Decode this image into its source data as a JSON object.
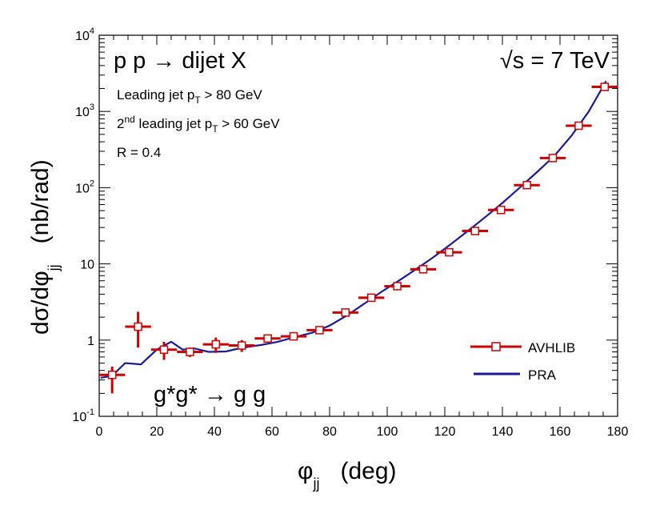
{
  "chart_data": {
    "type": "line",
    "title": "p p → dijet X",
    "energy_label": "√s = 7 TeV",
    "process_label": "g*g* → g g",
    "cut_lines": [
      {
        "text": "Leading jet p",
        "sub": "T",
        "rest": " > 80 GeV"
      },
      {
        "pre": "2",
        "sup": "nd",
        "text": " leading jet p",
        "sub": "T",
        "rest": " > 60 GeV"
      },
      {
        "text": "R = 0.4"
      }
    ],
    "xlabel": {
      "main": "φ",
      "sub": "jj",
      "unit": "(deg)"
    },
    "ylabel": {
      "main": "dσ/dφ",
      "sub": "jj",
      "unit": "(nb/rad)"
    },
    "x_range": [
      0,
      180
    ],
    "y_range": [
      0.1,
      10000
    ],
    "y_scale": "log",
    "x_ticks": [
      "0",
      "20",
      "40",
      "60",
      "80",
      "100",
      "120",
      "140",
      "160",
      "180"
    ],
    "x_tick_values": [
      0,
      20,
      40,
      60,
      80,
      100,
      120,
      140,
      160,
      180
    ],
    "y_tick_values": [
      0.1,
      1,
      10,
      100,
      1000,
      10000
    ],
    "y_tick_labels": [
      {
        "base": "10",
        "exp": "-1"
      },
      {
        "base": "1",
        "exp": ""
      },
      {
        "base": "10",
        "exp": ""
      },
      {
        "base": "10",
        "exp": "2"
      },
      {
        "base": "10",
        "exp": "3"
      },
      {
        "base": "10",
        "exp": "4"
      }
    ],
    "legend_position": "bottom-right",
    "series": [
      {
        "name": "AVHLIB",
        "style": "markers-with-errorbars",
        "color": "#cc0000",
        "x": [
          4.5,
          13.5,
          22.5,
          31.5,
          40.5,
          49.5,
          58.5,
          67.5,
          76.5,
          85.5,
          94.5,
          103.5,
          112.5,
          121.5,
          130.5,
          139.5,
          148.5,
          157.5,
          166.5,
          175.5
        ],
        "x_err": 4.5,
        "y": [
          0.35,
          1.5,
          0.75,
          0.7,
          0.88,
          0.85,
          1.05,
          1.12,
          1.35,
          2.3,
          3.6,
          5.1,
          8.5,
          14.2,
          27,
          51,
          108,
          245,
          650,
          2100
        ],
        "y_err_lo": [
          0.15,
          0.7,
          0.2,
          0.1,
          0.2,
          0.15,
          0.1,
          0.1,
          0.1,
          0.15,
          0.2,
          0.25,
          0.4,
          0.6,
          1.0,
          2.0,
          4.0,
          8.0,
          20,
          60
        ],
        "y_err_hi": [
          0.1,
          0.85,
          0.2,
          0.1,
          0.2,
          0.15,
          0.1,
          0.1,
          0.1,
          0.15,
          0.2,
          0.25,
          0.4,
          0.6,
          1.0,
          2.0,
          4.0,
          8.0,
          20,
          60
        ]
      },
      {
        "name": "PRA",
        "style": "line",
        "color": "#1c1a96",
        "x": [
          0.5,
          4.5,
          9,
          14.5,
          20,
          25,
          29,
          33,
          38,
          44,
          50,
          56,
          62,
          68,
          74,
          80,
          86,
          92,
          98,
          104,
          110,
          116,
          122,
          128,
          134,
          140,
          146,
          152,
          158,
          164,
          170,
          176
        ],
        "y": [
          0.32,
          0.34,
          0.5,
          0.48,
          0.75,
          0.95,
          0.75,
          0.78,
          0.7,
          0.71,
          0.8,
          0.86,
          0.95,
          1.1,
          1.25,
          1.55,
          2.1,
          3.0,
          4.3,
          6.0,
          8.5,
          12.2,
          18.0,
          27,
          41,
          63,
          100,
          160,
          260,
          480,
          1000,
          2500
        ]
      }
    ]
  }
}
